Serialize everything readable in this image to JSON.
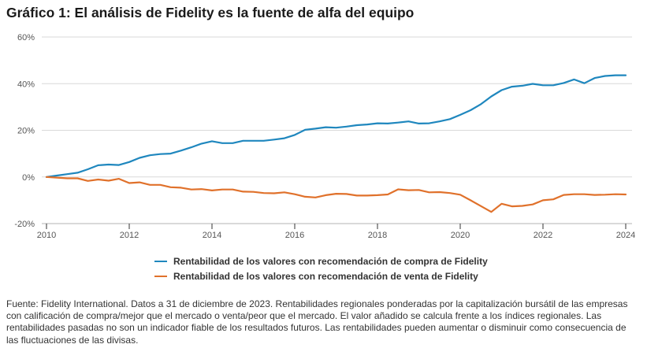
{
  "title": "Gráfico 1: El análisis de Fidelity es la fuente de alfa del equipo",
  "footnote": "Fuente: Fidelity International. Datos a 31 de diciembre de 2023. Rentabilidades regionales ponderadas por la capitalización bursátil de las empresas con calificación de compra/mejor que el mercado o venta/peor que el mercado. El valor añadido se calcula frente a los índices regionales. Las rentabilidades pasadas no son un indicador fiable de los resultados futuros. Las rentabilidades pueden aumentar o disminuir como consecuencia de las fluctuaciones de las divisas.",
  "chart_data": {
    "type": "line",
    "title": "Gráfico 1: El análisis de Fidelity es la fuente de alfa del equipo",
    "xlabel": "",
    "ylabel": "",
    "xlim": [
      2010,
      2024
    ],
    "ylim": [
      -20,
      60
    ],
    "grid": true,
    "legend_position": "bottom-center",
    "x_ticks": [
      2010,
      2012,
      2014,
      2016,
      2018,
      2020,
      2022,
      2024
    ],
    "x_tick_labels": [
      "2010",
      "2012",
      "2014",
      "2016",
      "2018",
      "2020",
      "2022",
      "2024"
    ],
    "y_ticks": [
      -20,
      0,
      20,
      40,
      60
    ],
    "y_tick_labels": [
      "-20%",
      "0%",
      "20%",
      "40%",
      "60%"
    ],
    "x": [
      2010.0,
      2010.25,
      2010.5,
      2010.75,
      2011.0,
      2011.25,
      2011.5,
      2011.75,
      2012.0,
      2012.25,
      2012.5,
      2012.75,
      2013.0,
      2013.25,
      2013.5,
      2013.75,
      2014.0,
      2014.25,
      2014.5,
      2014.75,
      2015.0,
      2015.25,
      2015.5,
      2015.75,
      2016.0,
      2016.25,
      2016.5,
      2016.75,
      2017.0,
      2017.25,
      2017.5,
      2017.75,
      2018.0,
      2018.25,
      2018.5,
      2018.75,
      2019.0,
      2019.25,
      2019.5,
      2019.75,
      2020.0,
      2020.25,
      2020.5,
      2020.75,
      2021.0,
      2021.25,
      2021.5,
      2021.75,
      2022.0,
      2022.25,
      2022.5,
      2022.75,
      2023.0,
      2023.25,
      2023.5,
      2023.75,
      2024.0
    ],
    "series": [
      {
        "name": "Rentabilidad de los valores con recomendación de compra de Fidelity",
        "color": "#1f87be",
        "values": [
          0,
          0.6,
          1.2,
          1.8,
          3.3,
          5.0,
          5.3,
          5.1,
          6.4,
          8.2,
          9.3,
          9.8,
          10.0,
          11.3,
          12.7,
          14.3,
          15.3,
          14.5,
          14.5,
          15.5,
          15.5,
          15.5,
          16.0,
          16.6,
          18.0,
          20.2,
          20.7,
          21.3,
          21.1,
          21.6,
          22.2,
          22.5,
          23.0,
          22.9,
          23.3,
          23.8,
          22.9,
          23.0,
          23.8,
          24.8,
          26.6,
          28.6,
          31.2,
          34.5,
          37.2,
          38.7,
          39.1,
          39.9,
          39.3,
          39.3,
          40.3,
          41.8,
          40.2,
          42.4,
          43.3,
          43.6,
          43.6
        ]
      },
      {
        "name": "Rentabilidad de los valores con recomendación de venta de Fidelity",
        "color": "#e0712b",
        "values": [
          0,
          -0.3,
          -0.6,
          -0.6,
          -1.7,
          -1.1,
          -1.6,
          -0.8,
          -2.6,
          -2.3,
          -3.4,
          -3.4,
          -4.4,
          -4.6,
          -5.4,
          -5.2,
          -5.8,
          -5.4,
          -5.4,
          -6.3,
          -6.4,
          -6.9,
          -7.0,
          -6.6,
          -7.4,
          -8.5,
          -8.8,
          -7.8,
          -7.2,
          -7.3,
          -8.0,
          -8.0,
          -7.8,
          -7.5,
          -5.3,
          -5.7,
          -5.6,
          -6.6,
          -6.5,
          -6.9,
          -7.6,
          -10.0,
          -12.5,
          -15.0,
          -11.5,
          -12.6,
          -12.4,
          -11.8,
          -10.0,
          -9.6,
          -7.7,
          -7.4,
          -7.4,
          -7.7,
          -7.6,
          -7.4,
          -7.5
        ]
      }
    ]
  }
}
